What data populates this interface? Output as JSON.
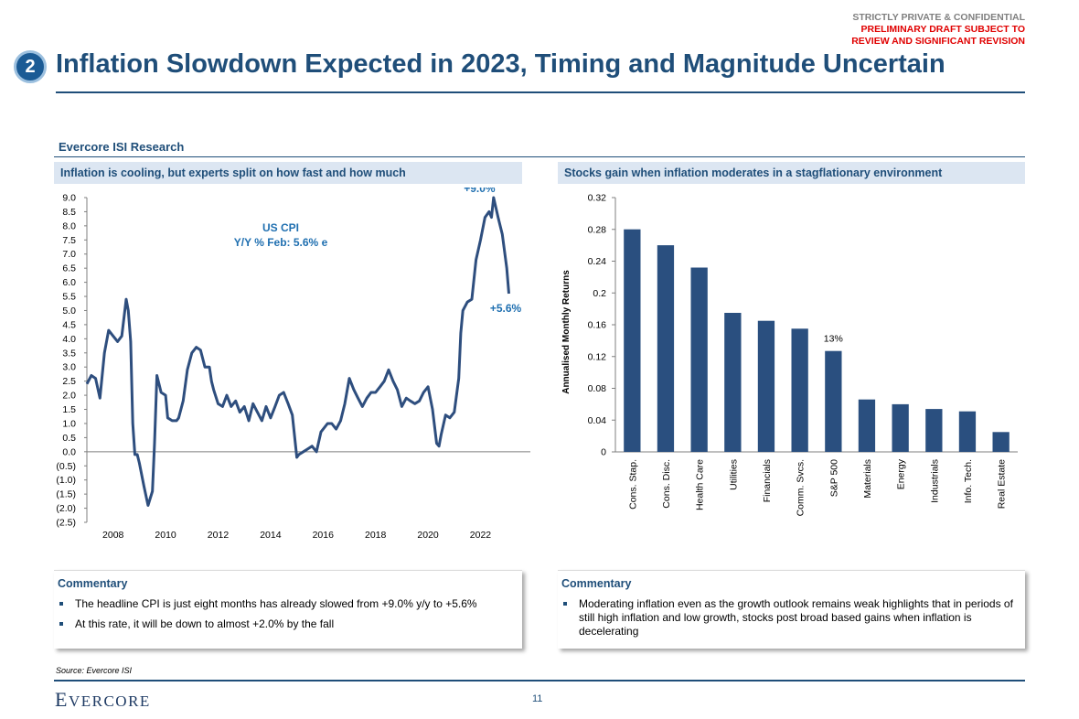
{
  "header": {
    "confidential_line1": "STRICTLY PRIVATE & CONFIDENTIAL",
    "confidential_line2": "PRELIMINARY DRAFT SUBJECT TO",
    "confidential_line3": "REVIEW AND SIGNIFICANT REVISION",
    "section_number": "2",
    "title": "Inflation Slowdown Expected in 2023, Timing and Magnitude Uncertain"
  },
  "section_label": "Evercore ISI Research",
  "left_panel": {
    "heading": "Inflation is cooling, but experts split on how fast and how much",
    "commentary_title": "Commentary",
    "commentary": [
      "The headline CPI is just eight months has already slowed from +9.0% y/y to +5.6%",
      "At this rate, it will be down to almost +2.0% by the fall"
    ]
  },
  "right_panel": {
    "heading": "Stocks gain when inflation moderates in a stagflationary environment",
    "commentary_title": "Commentary",
    "commentary": [
      "Moderating inflation even as the growth outlook remains weak highlights that in periods of still high inflation and low growth, stocks post broad based gains when inflation is decelerating"
    ]
  },
  "chart_data": [
    {
      "type": "line",
      "title": "US CPI",
      "subtitle": "Y/Y % Feb: 5.6% e",
      "xlabel": "",
      "ylabel": "",
      "xlim": [
        2007.0,
        2023.9
      ],
      "ylim": [
        -2.5,
        9.0
      ],
      "ytick_values": [
        -2.5,
        -2.0,
        -1.5,
        -1.0,
        -0.5,
        0.0,
        0.5,
        1.0,
        1.5,
        2.0,
        2.5,
        3.0,
        3.5,
        4.0,
        4.5,
        5.0,
        5.5,
        6.0,
        6.5,
        7.0,
        7.5,
        8.0,
        8.5,
        9.0
      ],
      "ytick_labels": [
        "(2.5)",
        "(2.0)",
        "(1.5)",
        "(1.0)",
        "(0.5)",
        "0.0",
        "0.5",
        "1.0",
        "1.5",
        "2.0",
        "2.5",
        "3.0",
        "3.5",
        "4.0",
        "4.5",
        "5.0",
        "5.5",
        "6.0",
        "6.5",
        "7.0",
        "7.5",
        "8.0",
        "8.5",
        "9.0"
      ],
      "xtick_values": [
        2008,
        2010,
        2012,
        2014,
        2016,
        2018,
        2020,
        2022
      ],
      "xtick_labels": [
        "2008",
        "2010",
        "2012",
        "2014",
        "2016",
        "2018",
        "2020",
        "2022"
      ],
      "color": "#2e4e7e",
      "annotations": [
        {
          "text": "+9.0%",
          "x": 2022.45,
          "y": 9.0
        },
        {
          "text": "+5.6%",
          "x": 2023.1,
          "y": 5.6
        }
      ],
      "series": [
        {
          "name": "US CPI Y/Y %",
          "x": [
            2007.0,
            2007.17,
            2007.33,
            2007.5,
            2007.67,
            2007.83,
            2008.0,
            2008.17,
            2008.33,
            2008.5,
            2008.58,
            2008.67,
            2008.75,
            2008.83,
            2008.92,
            2009.0,
            2009.17,
            2009.33,
            2009.5,
            2009.58,
            2009.67,
            2009.83,
            2010.0,
            2010.08,
            2010.25,
            2010.42,
            2010.5,
            2010.67,
            2010.83,
            2011.0,
            2011.17,
            2011.33,
            2011.5,
            2011.67,
            2011.75,
            2011.83,
            2012.0,
            2012.17,
            2012.33,
            2012.5,
            2012.67,
            2012.83,
            2013.0,
            2013.17,
            2013.33,
            2013.5,
            2013.67,
            2013.83,
            2014.0,
            2014.17,
            2014.33,
            2014.5,
            2014.67,
            2014.83,
            2015.0,
            2015.08,
            2015.25,
            2015.42,
            2015.58,
            2015.75,
            2015.92,
            2016.17,
            2016.33,
            2016.5,
            2016.67,
            2016.83,
            2017.0,
            2017.17,
            2017.33,
            2017.5,
            2017.67,
            2017.83,
            2018.0,
            2018.17,
            2018.33,
            2018.5,
            2018.67,
            2018.83,
            2019.0,
            2019.17,
            2019.33,
            2019.5,
            2019.67,
            2019.83,
            2020.0,
            2020.17,
            2020.33,
            2020.42,
            2020.5,
            2020.67,
            2020.83,
            2021.0,
            2021.17,
            2021.25,
            2021.33,
            2021.5,
            2021.67,
            2021.83,
            2022.0,
            2022.17,
            2022.33,
            2022.42,
            2022.5,
            2022.67,
            2022.83,
            2023.0,
            2023.08
          ],
          "y": [
            2.4,
            2.7,
            2.6,
            1.9,
            3.5,
            4.3,
            4.1,
            3.9,
            4.1,
            5.4,
            5.0,
            3.9,
            1.0,
            -0.1,
            -0.1,
            -0.4,
            -1.2,
            -1.9,
            -1.4,
            0.3,
            2.7,
            2.1,
            2.0,
            1.2,
            1.1,
            1.1,
            1.2,
            1.8,
            2.9,
            3.5,
            3.7,
            3.6,
            3.0,
            3.0,
            2.5,
            2.2,
            1.7,
            1.6,
            2.0,
            1.6,
            1.8,
            1.4,
            1.6,
            1.1,
            1.7,
            1.4,
            1.1,
            1.6,
            1.2,
            1.6,
            2.0,
            2.1,
            1.7,
            1.3,
            -0.2,
            -0.1,
            0.0,
            0.1,
            0.2,
            0.0,
            0.7,
            1.0,
            1.0,
            0.8,
            1.1,
            1.7,
            2.6,
            2.2,
            1.9,
            1.6,
            1.9,
            2.1,
            2.1,
            2.3,
            2.5,
            2.9,
            2.5,
            2.2,
            1.6,
            1.9,
            1.8,
            1.7,
            1.8,
            2.1,
            2.3,
            1.5,
            0.3,
            0.2,
            0.6,
            1.3,
            1.2,
            1.4,
            2.6,
            4.2,
            5.0,
            5.3,
            5.4,
            6.8,
            7.5,
            8.3,
            8.5,
            8.3,
            9.0,
            8.3,
            7.7,
            6.5,
            5.6
          ]
        }
      ]
    },
    {
      "type": "bar",
      "title": "",
      "xlabel": "",
      "ylabel": "Annualised Monthly Returns",
      "ylim": [
        0,
        0.32
      ],
      "ytick_values": [
        0,
        0.04,
        0.08,
        0.12,
        0.16,
        0.2,
        0.24,
        0.28,
        0.32
      ],
      "ytick_labels": [
        "0",
        "0.04",
        "0.08",
        "0.12",
        "0.16",
        "0.2",
        "0.24",
        "0.28",
        "0.32"
      ],
      "color": "#2a4f7f",
      "categories": [
        "Cons. Stap.",
        "Cons. Disc.",
        "Health Care",
        "Utilities",
        "Financials",
        "Comm. Svcs.",
        "S&P 500",
        "Materials",
        "Energy",
        "Industrials",
        "Info. Tech.",
        "Real Estate"
      ],
      "values": [
        0.28,
        0.26,
        0.232,
        0.175,
        0.165,
        0.155,
        0.127,
        0.066,
        0.06,
        0.054,
        0.051,
        0.025
      ],
      "data_labels": [
        {
          "category": "S&P 500",
          "text": "13%"
        }
      ]
    }
  ],
  "footer": {
    "source": "Source: Evercore ISI",
    "logo_first": "E",
    "logo_rest": "VERCORE",
    "page_number": "11"
  }
}
